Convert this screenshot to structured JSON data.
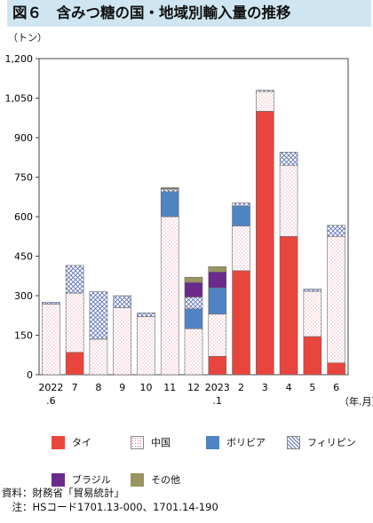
{
  "header": {
    "title": "図６　含みつ糖の国・地域別輸入量の推移",
    "unit": "（トン）",
    "x_unit": "（年.月）"
  },
  "notes": {
    "source": "資料：財務省「貿易統計」",
    "note": "　注：HSコード1701.13-000、1701.14-190"
  },
  "colors": {
    "thai": "#e8453c",
    "china": "#ffffff",
    "bolivia": "#4f84c4",
    "philippines": "#ffffff",
    "brazil": "#6a2a8c",
    "other": "#9a9460"
  },
  "chart_data": {
    "type": "bar",
    "stacked": true,
    "categories": [
      "2022\n.6",
      "7",
      "8",
      "9",
      "10",
      "11",
      "12",
      "2023\n.1",
      "2",
      "3",
      "4",
      "5",
      "6"
    ],
    "y_ticks": [
      "0",
      "150",
      "300",
      "450",
      "600",
      "750",
      "900",
      "1,050",
      "1,200"
    ],
    "ylim": [
      0,
      1200
    ],
    "grid": false,
    "legend_position": "bottom",
    "series": [
      {
        "name": "タイ",
        "key": "thai",
        "values": [
          0,
          85,
          0,
          0,
          0,
          0,
          0,
          70,
          395,
          1000,
          525,
          145,
          45
        ]
      },
      {
        "name": "中国",
        "key": "china",
        "values": [
          268,
          225,
          135,
          255,
          220,
          600,
          175,
          160,
          170,
          75,
          270,
          172,
          480
        ]
      },
      {
        "name": "ボリビア",
        "key": "bolivia",
        "values": [
          0,
          0,
          0,
          0,
          0,
          95,
          75,
          100,
          75,
          0,
          0,
          0,
          0
        ]
      },
      {
        "name": "フィリピン",
        "key": "philippines",
        "values": [
          7,
          105,
          180,
          45,
          15,
          10,
          45,
          0,
          12,
          5,
          50,
          8,
          42
        ]
      },
      {
        "name": "ブラジル",
        "key": "brazil",
        "values": [
          0,
          0,
          0,
          0,
          0,
          0,
          55,
          60,
          0,
          0,
          0,
          0,
          0
        ]
      },
      {
        "name": "その他",
        "key": "other",
        "values": [
          0,
          0,
          0,
          0,
          0,
          5,
          20,
          20,
          0,
          0,
          0,
          0,
          0
        ]
      }
    ]
  }
}
